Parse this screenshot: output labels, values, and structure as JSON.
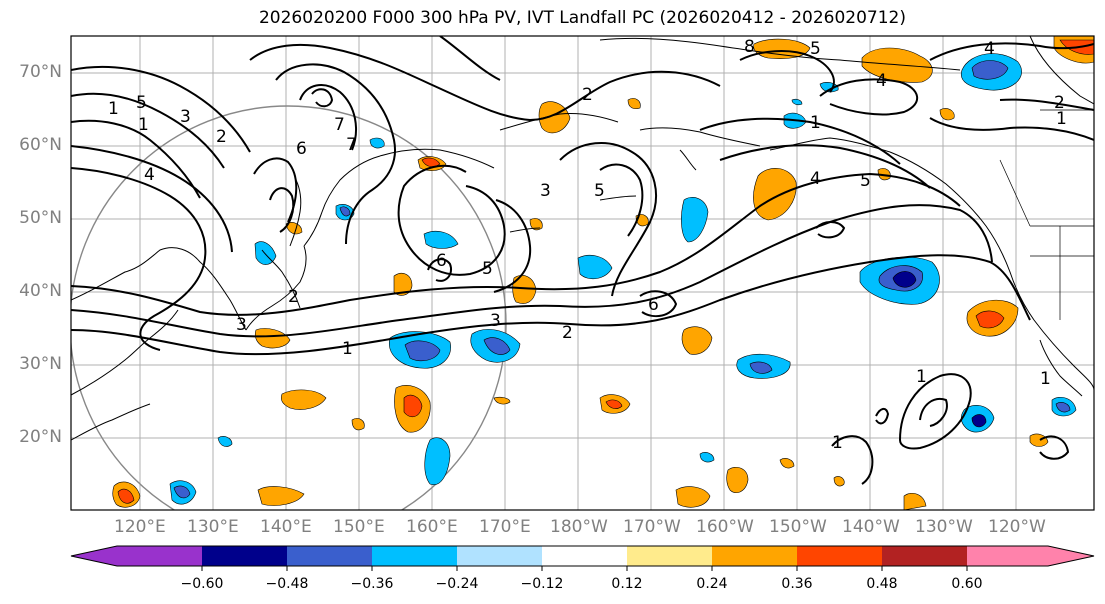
{
  "title": "2026020200 F000 300 hPa PV, IVT Landfall PC (2026020412 - 2026020712)",
  "map": {
    "lat_labels": [
      "70°N",
      "60°N",
      "50°N",
      "40°N",
      "30°N",
      "20°N"
    ],
    "lon_labels": [
      "120°E",
      "130°E",
      "140°E",
      "150°E",
      "160°E",
      "170°E",
      "180°W",
      "170°W",
      "160°W",
      "150°W",
      "140°W",
      "130°W",
      "120°W"
    ],
    "contour_labels": [
      "8",
      "5",
      "4",
      "2",
      "1",
      "7",
      "6",
      "3",
      "1",
      "2",
      "1",
      "5",
      "4",
      "3",
      "5",
      "6",
      "2",
      "7",
      "6",
      "5",
      "1",
      "2",
      "3",
      "5",
      "4",
      "4",
      "2",
      "1",
      "1",
      "3",
      "1",
      "1"
    ]
  },
  "colorbar": {
    "ticks": [
      "−0.60",
      "−0.48",
      "−0.36",
      "−0.24",
      "−0.12",
      "0.12",
      "0.24",
      "0.36",
      "0.48",
      "0.60"
    ],
    "colors": [
      "#9932cc",
      "#00008b",
      "#3a5fcd",
      "#00bfff",
      "#b0e2ff",
      "#ffffff",
      "#ffeb8c",
      "#ffa500",
      "#ff4500",
      "#b22222",
      "#ff82ab"
    ]
  }
}
